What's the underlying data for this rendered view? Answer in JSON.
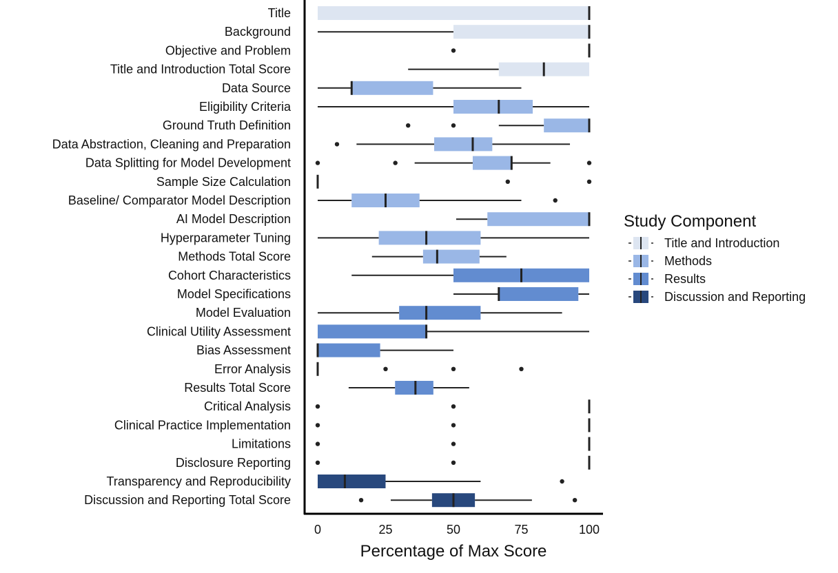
{
  "chart_data": {
    "type": "boxplot",
    "orientation": "horizontal",
    "title": "",
    "xlabel": "Percentage of Max Score",
    "ylabel": "",
    "xlim": [
      0,
      100
    ],
    "xticks": [
      0,
      25,
      50,
      75,
      100
    ],
    "xtick_labels": [
      "0",
      "25",
      "50",
      "75",
      "100"
    ],
    "grid": false,
    "legend": {
      "title": "Study Component",
      "position": "right",
      "entries": [
        {
          "name": "Title and Introduction",
          "color": "#dde5f1"
        },
        {
          "name": "Methods",
          "color": "#9ab7e6"
        },
        {
          "name": "Results",
          "color": "#628cd0"
        },
        {
          "name": "Discussion and Reporting",
          "color": "#28487d"
        }
      ]
    },
    "series": [
      {
        "name": "Title",
        "group": "Title and Introduction",
        "whisker_low": 0,
        "q1": 0,
        "median": 100,
        "q3": 100,
        "whisker_high": 100,
        "outliers": []
      },
      {
        "name": "Background",
        "group": "Title and Introduction",
        "whisker_low": 0,
        "q1": 50,
        "median": 100,
        "q3": 100,
        "whisker_high": 100,
        "outliers": []
      },
      {
        "name": "Objective and Problem",
        "group": "Title and Introduction",
        "whisker_low": 100,
        "q1": 100,
        "median": 100,
        "q3": 100,
        "whisker_high": 100,
        "outliers": [
          50
        ]
      },
      {
        "name": "Title and Introduction Total Score",
        "group": "Title and Introduction",
        "whisker_low": 33.3,
        "q1": 66.7,
        "median": 83.3,
        "q3": 100,
        "whisker_high": 100,
        "outliers": []
      },
      {
        "name": "Data Source",
        "group": "Methods",
        "whisker_low": 0,
        "q1": 12.5,
        "median": 12.5,
        "q3": 42.5,
        "whisker_high": 75,
        "outliers": []
      },
      {
        "name": "Eligibility Criteria",
        "group": "Methods",
        "whisker_low": 0,
        "q1": 50,
        "median": 66.7,
        "q3": 79.2,
        "whisker_high": 100,
        "outliers": []
      },
      {
        "name": "Ground Truth Definition",
        "group": "Methods",
        "whisker_low": 66.7,
        "q1": 83.3,
        "median": 100,
        "q3": 100,
        "whisker_high": 100,
        "outliers": [
          33.3,
          50
        ]
      },
      {
        "name": "Data Abstraction, Cleaning and Preparation",
        "group": "Methods",
        "whisker_low": 14.3,
        "q1": 42.9,
        "median": 57.1,
        "q3": 64.3,
        "whisker_high": 92.9,
        "outliers": [
          7.1
        ]
      },
      {
        "name": "Data Splitting for Model Development",
        "group": "Methods",
        "whisker_low": 35.7,
        "q1": 57.1,
        "median": 71.4,
        "q3": 71.4,
        "whisker_high": 85.7,
        "outliers": [
          0,
          28.6,
          100
        ]
      },
      {
        "name": "Sample Size Calculation",
        "group": "Methods",
        "whisker_low": 0,
        "q1": 0,
        "median": 0,
        "q3": 0,
        "whisker_high": 0,
        "outliers": [
          70,
          100
        ]
      },
      {
        "name": "Baseline/ Comparator Model Description",
        "group": "Methods",
        "whisker_low": 0,
        "q1": 12.5,
        "median": 25,
        "q3": 37.5,
        "whisker_high": 75,
        "outliers": [
          87.5
        ]
      },
      {
        "name": "AI Model Description",
        "group": "Methods",
        "whisker_low": 51,
        "q1": 62.5,
        "median": 100,
        "q3": 100,
        "whisker_high": 100,
        "outliers": []
      },
      {
        "name": "Hyperparameter Tuning",
        "group": "Methods",
        "whisker_low": 0,
        "q1": 22.5,
        "median": 40,
        "q3": 60,
        "whisker_high": 100,
        "outliers": []
      },
      {
        "name": "Methods Total Score",
        "group": "Methods",
        "whisker_low": 20,
        "q1": 38.8,
        "median": 44,
        "q3": 59.6,
        "whisker_high": 69.5,
        "outliers": []
      },
      {
        "name": "Cohort Characteristics",
        "group": "Results",
        "whisker_low": 12.5,
        "q1": 50,
        "median": 75,
        "q3": 100,
        "whisker_high": 100,
        "outliers": []
      },
      {
        "name": "Model Specifications",
        "group": "Results",
        "whisker_low": 50,
        "q1": 66.7,
        "median": 66.7,
        "q3": 96,
        "whisker_high": 100,
        "outliers": []
      },
      {
        "name": "Model Evaluation",
        "group": "Results",
        "whisker_low": 0,
        "q1": 30,
        "median": 40,
        "q3": 60,
        "whisker_high": 90,
        "outliers": []
      },
      {
        "name": "Clinical Utility Assessment",
        "group": "Results",
        "whisker_low": 0,
        "q1": 0,
        "median": 40,
        "q3": 40,
        "whisker_high": 100,
        "outliers": []
      },
      {
        "name": "Bias Assessment",
        "group": "Results",
        "whisker_low": 0,
        "q1": 0,
        "median": 0,
        "q3": 23,
        "whisker_high": 50,
        "outliers": []
      },
      {
        "name": "Error Analysis",
        "group": "Results",
        "whisker_low": 0,
        "q1": 0,
        "median": 0,
        "q3": 0,
        "whisker_high": 0,
        "outliers": [
          25,
          50,
          75
        ]
      },
      {
        "name": "Results Total Score",
        "group": "Results",
        "whisker_low": 11.4,
        "q1": 28.5,
        "median": 36,
        "q3": 42.6,
        "whisker_high": 55.8,
        "outliers": []
      },
      {
        "name": "Critical Analysis",
        "group": "Discussion and Reporting",
        "whisker_low": 100,
        "q1": 100,
        "median": 100,
        "q3": 100,
        "whisker_high": 100,
        "outliers": [
          0,
          50
        ]
      },
      {
        "name": "Clinical Practice Implementation",
        "group": "Discussion and Reporting",
        "whisker_low": 100,
        "q1": 100,
        "median": 100,
        "q3": 100,
        "whisker_high": 100,
        "outliers": [
          0,
          50
        ]
      },
      {
        "name": "Limitations",
        "group": "Discussion and Reporting",
        "whisker_low": 100,
        "q1": 100,
        "median": 100,
        "q3": 100,
        "whisker_high": 100,
        "outliers": [
          0,
          50
        ]
      },
      {
        "name": "Disclosure Reporting",
        "group": "Discussion and Reporting",
        "whisker_low": 100,
        "q1": 100,
        "median": 100,
        "q3": 100,
        "whisker_high": 100,
        "outliers": [
          0,
          50
        ]
      },
      {
        "name": "Transparency and Reproducibility",
        "group": "Discussion and Reporting",
        "whisker_low": 0,
        "q1": 0,
        "median": 10,
        "q3": 25,
        "whisker_high": 60,
        "outliers": [
          90
        ]
      },
      {
        "name": "Discussion and Reporting Total Score",
        "group": "Discussion and Reporting",
        "whisker_low": 26.9,
        "q1": 42.1,
        "median": 50,
        "q3": 57.9,
        "whisker_high": 78.9,
        "outliers": [
          16,
          94.7
        ]
      }
    ]
  }
}
